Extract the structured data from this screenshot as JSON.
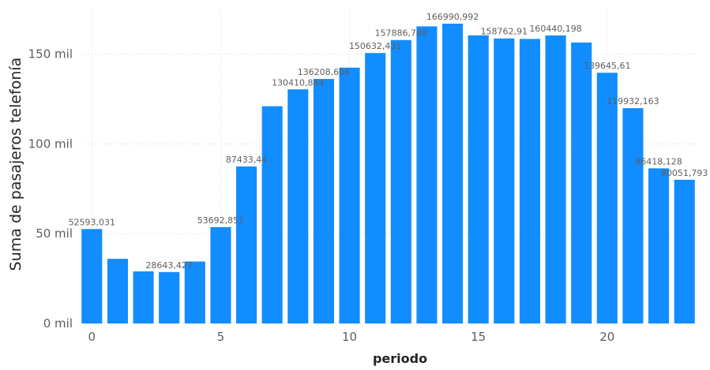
{
  "chart_data": {
    "type": "bar",
    "xlabel": "periodo",
    "ylabel": "Suma de pasajeros telefonía",
    "x": [
      0,
      1,
      2,
      3,
      4,
      5,
      6,
      7,
      8,
      9,
      10,
      11,
      12,
      13,
      14,
      15,
      16,
      17,
      18,
      19,
      20,
      21,
      22,
      23
    ],
    "values": [
      52593.031,
      36000,
      29000,
      28643.427,
      34500,
      53692.851,
      87433.44,
      121000,
      130410.884,
      136208.606,
      142500,
      150632.431,
      157886.788,
      165500,
      166990.992,
      160500,
      158762.91,
      158500,
      160440.198,
      156500,
      139645.61,
      119932.163,
      86418.128,
      80051.793
    ],
    "data_labels": [
      {
        "x": 0,
        "text": "52593,031"
      },
      {
        "x": 3,
        "text": "28643,427"
      },
      {
        "x": 5,
        "text": "53692,851"
      },
      {
        "x": 6,
        "text": "87433,44"
      },
      {
        "x": 8,
        "text": "130410,884"
      },
      {
        "x": 9,
        "text": "136208,606"
      },
      {
        "x": 11,
        "text": "150632,431"
      },
      {
        "x": 12,
        "text": "157886,788"
      },
      {
        "x": 14,
        "text": "166990,992"
      },
      {
        "x": 16,
        "text": "158762,91"
      },
      {
        "x": 18,
        "text": "160440,198"
      },
      {
        "x": 20,
        "text": "139645,61"
      },
      {
        "x": 21,
        "text": "119932,163"
      },
      {
        "x": 22,
        "text": "86418,128"
      },
      {
        "x": 23,
        "text": "80051,793"
      }
    ],
    "y_ticks": [
      {
        "value": 0,
        "label": "0 mil"
      },
      {
        "value": 50000,
        "label": "50 mil"
      },
      {
        "value": 100000,
        "label": "100 mil"
      },
      {
        "value": 150000,
        "label": "150 mil"
      }
    ],
    "x_ticks": [
      {
        "value": 0,
        "label": "0"
      },
      {
        "value": 5,
        "label": "5"
      },
      {
        "value": 10,
        "label": "10"
      },
      {
        "value": 15,
        "label": "15"
      },
      {
        "value": 20,
        "label": "20"
      }
    ],
    "ylim": [
      0,
      167000
    ],
    "xlim": [
      -0.5,
      23.5
    ],
    "grid": true,
    "legend": "none",
    "bar_color": "#118dff"
  }
}
